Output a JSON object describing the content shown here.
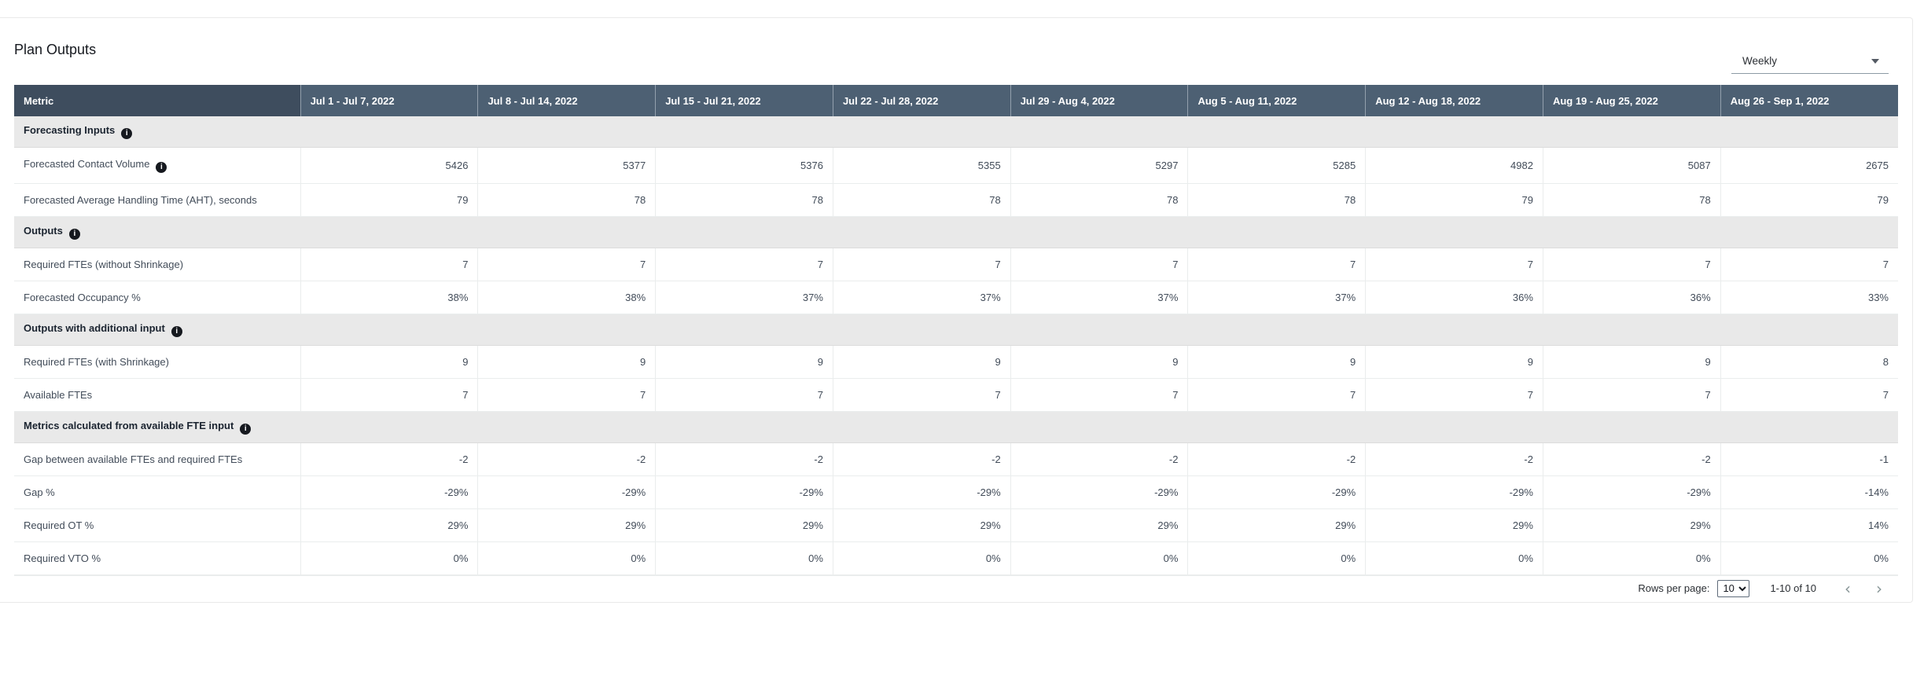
{
  "page": {
    "title": "Plan Outputs"
  },
  "interval_select": {
    "value": "Weekly"
  },
  "table": {
    "metric_header": "Metric",
    "week_headers": [
      "Jul 1 - Jul 7, 2022",
      "Jul 8 - Jul 14, 2022",
      "Jul 15 - Jul 21, 2022",
      "Jul 22 - Jul 28, 2022",
      "Jul 29 - Aug 4, 2022",
      "Aug 5 - Aug 11, 2022",
      "Aug 12 - Aug 18, 2022",
      "Aug 19 - Aug 25, 2022",
      "Aug 26 - Sep 1, 2022"
    ],
    "sections": [
      {
        "title": "Forecasting Inputs",
        "has_info": true,
        "rows": [
          {
            "metric": "Forecasted Contact Volume",
            "has_info": true,
            "values": [
              "5426",
              "5377",
              "5376",
              "5355",
              "5297",
              "5285",
              "4982",
              "5087",
              "2675"
            ]
          },
          {
            "metric": "Forecasted Average Handling Time (AHT), seconds",
            "has_info": false,
            "values": [
              "79",
              "78",
              "78",
              "78",
              "78",
              "78",
              "79",
              "78",
              "79"
            ]
          }
        ]
      },
      {
        "title": "Outputs",
        "has_info": true,
        "rows": [
          {
            "metric": "Required FTEs (without Shrinkage)",
            "has_info": false,
            "values": [
              "7",
              "7",
              "7",
              "7",
              "7",
              "7",
              "7",
              "7",
              "7"
            ]
          },
          {
            "metric": "Forecasted Occupancy %",
            "has_info": false,
            "values": [
              "38%",
              "38%",
              "37%",
              "37%",
              "37%",
              "37%",
              "36%",
              "36%",
              "33%"
            ]
          }
        ]
      },
      {
        "title": "Outputs with additional input",
        "has_info": true,
        "rows": [
          {
            "metric": "Required FTEs (with Shrinkage)",
            "has_info": false,
            "values": [
              "9",
              "9",
              "9",
              "9",
              "9",
              "9",
              "9",
              "9",
              "8"
            ]
          },
          {
            "metric": "Available FTEs",
            "has_info": false,
            "values": [
              "7",
              "7",
              "7",
              "7",
              "7",
              "7",
              "7",
              "7",
              "7"
            ]
          }
        ]
      },
      {
        "title": "Metrics calculated from available FTE input",
        "has_info": true,
        "rows": [
          {
            "metric": "Gap between available FTEs and required FTEs",
            "has_info": false,
            "values": [
              "-2",
              "-2",
              "-2",
              "-2",
              "-2",
              "-2",
              "-2",
              "-2",
              "-1"
            ]
          },
          {
            "metric": "Gap %",
            "has_info": false,
            "values": [
              "-29%",
              "-29%",
              "-29%",
              "-29%",
              "-29%",
              "-29%",
              "-29%",
              "-29%",
              "-14%"
            ]
          },
          {
            "metric": "Required OT %",
            "has_info": false,
            "values": [
              "29%",
              "29%",
              "29%",
              "29%",
              "29%",
              "29%",
              "29%",
              "29%",
              "14%"
            ]
          },
          {
            "metric": "Required VTO %",
            "has_info": false,
            "values": [
              "0%",
              "0%",
              "0%",
              "0%",
              "0%",
              "0%",
              "0%",
              "0%",
              "0%"
            ]
          }
        ]
      }
    ]
  },
  "pagination": {
    "rows_per_page_label": "Rows per page:",
    "rows_per_page_value": "10",
    "range_text": "1-10 of 10",
    "prev_glyph": "‹",
    "next_glyph": "›"
  },
  "colors": {
    "header_bg": "#4d6073",
    "metric_header_bg": "#3e4d5e",
    "section_row_bg": "#e9e9e9",
    "row_border": "#eaeded",
    "header_text": "#ffffff",
    "body_text": "#424c59"
  }
}
